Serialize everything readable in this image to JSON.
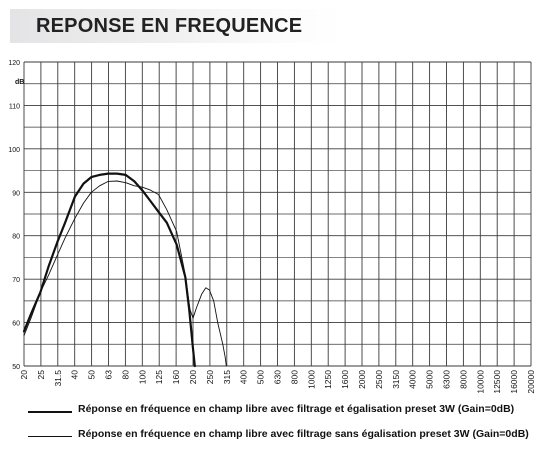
{
  "title": "REPONSE EN FREQUENCE",
  "chart_data": {
    "type": "line",
    "xscale": "log-frequency",
    "x_ticks": [
      "20",
      "25",
      "31.5",
      "40",
      "50",
      "63",
      "80",
      "100",
      "125",
      "160",
      "200",
      "250",
      "315",
      "400",
      "500",
      "630",
      "800",
      "1000",
      "1250",
      "1600",
      "2000",
      "2500",
      "3150",
      "4000",
      "5000",
      "6300",
      "8000",
      "10000",
      "12500",
      "16000",
      "20000"
    ],
    "ylabel": "dB",
    "y_ticks": [
      50,
      60,
      70,
      80,
      90,
      100,
      110,
      120
    ],
    "ylim": [
      50,
      120
    ],
    "grid": true,
    "series": [
      {
        "name": "Réponse en fréquence en champ libre avec filtrage et égalisation preset 3W (Gain=0dB)",
        "style": "thick",
        "color": "#111111",
        "points": [
          [
            20,
            58
          ],
          [
            22,
            62
          ],
          [
            25,
            67
          ],
          [
            28,
            73
          ],
          [
            31.5,
            78.5
          ],
          [
            35,
            83
          ],
          [
            40,
            89
          ],
          [
            45,
            92
          ],
          [
            50,
            93.5
          ],
          [
            56,
            94
          ],
          [
            63,
            94.3
          ],
          [
            71,
            94.3
          ],
          [
            80,
            94
          ],
          [
            90,
            92.5
          ],
          [
            100,
            90.5
          ],
          [
            112,
            88
          ],
          [
            125,
            85.5
          ],
          [
            140,
            83
          ],
          [
            160,
            78
          ],
          [
            180,
            70.5
          ],
          [
            190,
            63
          ],
          [
            200,
            54
          ],
          [
            205,
            50
          ]
        ]
      },
      {
        "name": "Réponse en fréquence en champ libre avec filtrage sans égalisation preset 3W (Gain=0dB)",
        "style": "thin",
        "color": "#111111",
        "points": [
          [
            20,
            57
          ],
          [
            22,
            61
          ],
          [
            25,
            67
          ],
          [
            28,
            71
          ],
          [
            31.5,
            75.5
          ],
          [
            35,
            79.5
          ],
          [
            40,
            84
          ],
          [
            45,
            87.5
          ],
          [
            50,
            90
          ],
          [
            56,
            91.5
          ],
          [
            63,
            92.5
          ],
          [
            71,
            92.6
          ],
          [
            80,
            92.2
          ],
          [
            90,
            91.5
          ],
          [
            100,
            91.2
          ],
          [
            112,
            90.5
          ],
          [
            125,
            89.5
          ],
          [
            140,
            86
          ],
          [
            160,
            81
          ],
          [
            180,
            71
          ],
          [
            192,
            63
          ],
          [
            200,
            61
          ],
          [
            210,
            63.5
          ],
          [
            225,
            66.5
          ],
          [
            238,
            68
          ],
          [
            250,
            67.5
          ],
          [
            265,
            65
          ],
          [
            280,
            60
          ],
          [
            300,
            55
          ],
          [
            310,
            52
          ],
          [
            315,
            50
          ]
        ]
      }
    ],
    "legend_position": "bottom"
  }
}
